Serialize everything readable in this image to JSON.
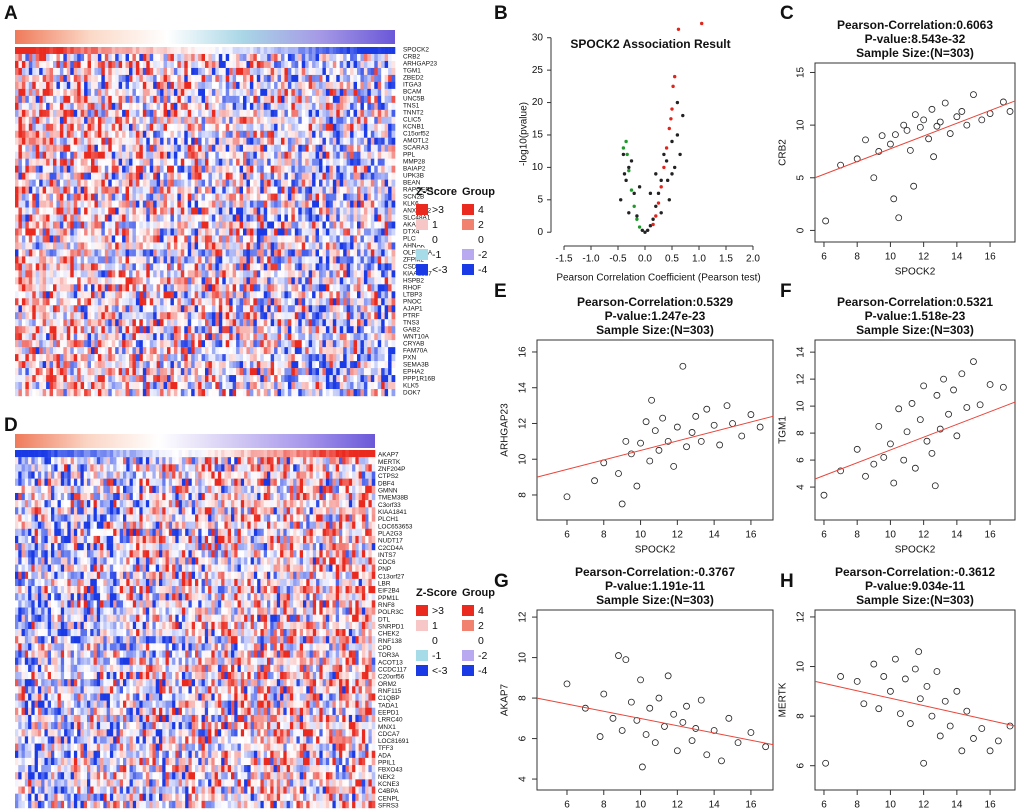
{
  "chart_data": [
    {
      "type": "heatmap",
      "panel": "A",
      "genes": [
        "SPOCK2",
        "CRB2",
        "ARHGAP23",
        "TGM1",
        "ZBED2",
        "ITGA3",
        "BCAM",
        "UNC5B",
        "TNS1",
        "TNNT2",
        "CLIC5",
        "KCNB1",
        "C15orf52",
        "AMOTL2",
        "SCARA3",
        "PPL",
        "MMP28",
        "BAIAP2",
        "UPK3B",
        "BEAN",
        "RAPGEF3",
        "SCN2B",
        "KLK6",
        "ANXA8L2",
        "SLC48A1",
        "AKAP12",
        "DTX4",
        "PLCD3",
        "AHNAK",
        "OLFML2A",
        "ZFPM2",
        "CSDC2",
        "KIAA1217",
        "HSPB2",
        "RHOF",
        "LTBP3",
        "PNOC",
        "AJAP1",
        "PTRF",
        "TNS3",
        "GAB2",
        "WNT10A",
        "CRYAB",
        "FAM70A",
        "PXN",
        "SEMA3B",
        "EPHA2",
        "PPP1R16B",
        "KLK5",
        "DOK7"
      ],
      "bar_colors": [
        "#ef7a5a",
        "#fbd9c8",
        "#ffffff",
        "#a9d6e6",
        "#a69ae6",
        "#6a58d8"
      ],
      "zscore": {
        "title": "Z-Score",
        "labels": [
          ">3",
          "1",
          "0",
          "-1",
          "<-3"
        ],
        "colors": [
          "#ea2a1f",
          "#f7c6c6",
          "#ffffff",
          "#a6dbe8",
          "#1a3ae6"
        ]
      },
      "group": {
        "title": "Group",
        "labels": [
          "4",
          "2",
          "0",
          "-2",
          "-4"
        ],
        "colors": [
          "#ea2a1f",
          "#f0826f",
          "#ffffff",
          "#b9a9f0",
          "#1a3ae6"
        ]
      }
    },
    {
      "type": "volcano",
      "panel": "B",
      "title": "SPOCK2 Association Result",
      "xlabel": "Pearson Correlation Coefficient (Pearson test)",
      "ylabel": "-log10(pvalue)",
      "xlim": [
        -1.63,
        2.13
      ],
      "ylim": [
        -1.2,
        31.5
      ],
      "xticks": [
        -1.5,
        {
          "value": -1,
          "label": "-1.0"
        },
        -0.5,
        {
          "value": 0,
          "label": "0.0"
        },
        0.5,
        {
          "value": 1,
          "label": "1.0"
        },
        1.5,
        {
          "value": 2,
          "label": "2.0"
        }
      ],
      "yticks": [
        0,
        5,
        10,
        15,
        20,
        25,
        30
      ],
      "points": [
        {
          "color": "#222222",
          "x": [
            0,
            0.05,
            -0.05,
            0.1,
            0.2,
            0.3,
            0.4,
            0.5,
            0.6,
            -0.2,
            -0.3,
            -0.4,
            -0.45,
            0.45,
            0.3,
            -0.3,
            0.55,
            -0.35,
            0.1,
            -0.1,
            0.2,
            0.35,
            0.5,
            -0.25,
            0.65,
            0.7,
            0.6,
            0.15,
            -0.15,
            0.25,
            -0.38,
            0.42
          ],
          "y": [
            0,
            0.3,
            0.3,
            1,
            4,
            8,
            11,
            14,
            15,
            6,
            10,
            12,
            5,
            5,
            3,
            3,
            10,
            8,
            6,
            7,
            9,
            12,
            9,
            11,
            12,
            18,
            20,
            2,
            2.5,
            6,
            9,
            8
          ]
        },
        {
          "color": "#1f9a2a",
          "x": [
            -0.4,
            -0.35,
            -0.33,
            -0.3,
            -0.25,
            -0.2,
            -0.15,
            -0.1
          ],
          "y": [
            13,
            14,
            12,
            9.5,
            6.5,
            4,
            2,
            0.8
          ]
        },
        {
          "color": "#e3241b",
          "x": [
            0.62,
            1.05,
            0.55,
            0.52,
            0.5,
            0.48,
            0.45,
            0.4,
            0.35,
            0.3,
            0.25,
            0.2,
            0.15
          ],
          "y": [
            31.3,
            32.2,
            24,
            22.5,
            19,
            17.5,
            16,
            13,
            10,
            7,
            4.5,
            2.5,
            1.2
          ]
        }
      ]
    },
    {
      "type": "scatter",
      "panel": "C",
      "title": [
        "Pearson-Correlation:0.6063",
        "P-value:8.543e-32",
        "Sample Size:(N=303)"
      ],
      "xlabel": "SPOCK2",
      "ylabel": "CRB2",
      "xlim": [
        5.46,
        17.5
      ],
      "ylim": [
        -1.1,
        15.9
      ],
      "xticks": [
        6,
        8,
        10,
        12,
        14,
        16
      ],
      "yticks": [
        0,
        5,
        10,
        15
      ],
      "x": [
        6.1,
        7,
        8,
        8.5,
        9,
        9.3,
        9.5,
        10,
        10.2,
        10.5,
        10.8,
        11,
        11.2,
        11.5,
        11.8,
        12,
        12.3,
        12.5,
        12.8,
        13,
        13.3,
        13.6,
        14,
        14.3,
        14.6,
        15,
        15.5,
        16,
        16.8,
        17.2,
        11.4,
        12.6,
        10.3
      ],
      "y": [
        0.9,
        6.2,
        6.8,
        8.6,
        5,
        7.5,
        9,
        8.2,
        3,
        1.2,
        10,
        9.5,
        7.6,
        11,
        9.8,
        10.5,
        8.7,
        11.5,
        9.9,
        10.3,
        12.1,
        9.2,
        10.8,
        11.3,
        10,
        12.9,
        10.5,
        11.1,
        12.2,
        11.3,
        4.2,
        7,
        9.1
      ],
      "fit": {
        "x": [
          5.46,
          17.5
        ],
        "y": [
          5.0,
          12.3
        ]
      }
    },
    {
      "type": "scatter",
      "panel": "E",
      "title": [
        "Pearson-Correlation:0.5329",
        "P-value:1.247e-23",
        "Sample Size:(N=303)"
      ],
      "xlabel": "SPOCK2",
      "ylabel": "ARHGAP23",
      "xlim": [
        4.37,
        17.2
      ],
      "ylim": [
        6.6,
        16.67
      ],
      "xticks": [
        6,
        8,
        10,
        12,
        14,
        16
      ],
      "yticks": [
        8,
        10,
        12,
        14,
        16
      ],
      "x": [
        6,
        7.5,
        8,
        8.8,
        9,
        9.2,
        9.5,
        9.8,
        10,
        10.3,
        10.5,
        10.8,
        11,
        11.2,
        11.5,
        11.8,
        12,
        12.3,
        12.5,
        12.8,
        13,
        13.3,
        13.6,
        14,
        14.3,
        14.7,
        15,
        15.5,
        16,
        16.5,
        10.6
      ],
      "y": [
        7.9,
        8.8,
        9.8,
        9.2,
        7.5,
        11,
        10.3,
        8.5,
        10.9,
        12.1,
        9.9,
        11.6,
        10.5,
        12.3,
        11,
        9.6,
        11.8,
        15.2,
        10.7,
        11.5,
        12.4,
        11,
        12.8,
        11.9,
        10.8,
        13,
        12,
        11.3,
        12.5,
        11.8,
        13.3
      ],
      "fit": {
        "x": [
          4.37,
          17.2
        ],
        "y": [
          9.0,
          12.4
        ]
      }
    },
    {
      "type": "scatter",
      "panel": "F",
      "title": [
        "Pearson-Correlation:0.5321",
        "P-value:1.518e-23",
        "Sample Size:(N=303)"
      ],
      "xlabel": "SPOCK2",
      "ylabel": "TGM1",
      "xlim": [
        5.46,
        17.5
      ],
      "ylim": [
        1.56,
        14.9
      ],
      "xticks": [
        6,
        8,
        10,
        12,
        14,
        16
      ],
      "yticks": [
        4,
        6,
        8,
        10,
        12,
        14
      ],
      "x": [
        6,
        7,
        8,
        8.5,
        9,
        9.3,
        9.6,
        10,
        10.2,
        10.5,
        10.8,
        11,
        11.3,
        11.5,
        11.8,
        12,
        12.2,
        12.5,
        12.8,
        13,
        13.2,
        13.5,
        13.8,
        14,
        14.3,
        14.6,
        15,
        15.4,
        16,
        16.8,
        12.7
      ],
      "y": [
        3.4,
        5.2,
        6.8,
        4.8,
        5.7,
        8.5,
        6.2,
        7.2,
        4.3,
        9.8,
        6,
        8.1,
        10.2,
        5.4,
        9,
        11.5,
        7.4,
        6.5,
        10.8,
        8.3,
        12,
        9.4,
        11.2,
        7.8,
        12.4,
        9.9,
        13.3,
        10.1,
        11.6,
        11.4,
        4.1
      ],
      "fit": {
        "x": [
          5.46,
          17.5
        ],
        "y": [
          4.6,
          10.3
        ]
      }
    },
    {
      "type": "heatmap",
      "panel": "D",
      "genes": [
        "AKAP7",
        "MERTK",
        "ZNF204P",
        "CTPS2",
        "DBF4",
        "GMNN",
        "TMEM38B",
        "C3orf33",
        "KIAA1841",
        "PLCH1",
        "LOC653653",
        "PLA2G3",
        "NUDT17",
        "C2CD4A",
        "INTS7",
        "CDC6",
        "PNP",
        "C13orf27",
        "LBR",
        "EIF2B4",
        "PPM1L",
        "RNF8",
        "POLR3C",
        "DTL",
        "SNRPD1",
        "CHEK2",
        "RNF138",
        "CPD",
        "TOR3A",
        "ACOT13",
        "CCDC117",
        "C20orf56",
        "ORM2",
        "RNF115",
        "C1QBP",
        "TADA1",
        "EEPD1",
        "LRRC40",
        "MNX1",
        "CDCA7",
        "LOC81691",
        "TFF3",
        "ADA",
        "PPIL1",
        "FBXO43",
        "NEK2",
        "KCNE3",
        "C4BPA",
        "CENPL",
        "SFRS3"
      ],
      "bar_colors": [
        "#ef7a5a",
        "#fbd4c4",
        "#ffffff",
        "#d6cdf4",
        "#a898ec",
        "#6a58d8"
      ],
      "zscore": {
        "title": "Z-Score",
        "labels": [
          ">3",
          "1",
          "0",
          "-1",
          "<-3"
        ],
        "colors": [
          "#ea2a1f",
          "#f7c6c6",
          "#ffffff",
          "#a6dbe8",
          "#1a3ae6"
        ]
      },
      "group": {
        "title": "Group",
        "labels": [
          "4",
          "2",
          "0",
          "-2",
          "-4"
        ],
        "colors": [
          "#ea2a1f",
          "#f0826f",
          "#ffffff",
          "#b9a9f0",
          "#1a3ae6"
        ]
      }
    },
    {
      "type": "scatter",
      "panel": "G",
      "title": [
        "Pearson-Correlation:-0.3767",
        "P-value:1.191e-11",
        "Sample Size:(N=303)"
      ],
      "xlabel": "SPOCK2",
      "ylabel": "AKAP7",
      "xlim": [
        4.37,
        17.2
      ],
      "ylim": [
        3.46,
        12.35
      ],
      "xticks": [
        6,
        8,
        10,
        12,
        14,
        16
      ],
      "yticks": [
        4,
        6,
        8,
        10,
        12
      ],
      "x": [
        6,
        7,
        7.8,
        8,
        8.5,
        8.8,
        9,
        9.2,
        9.5,
        9.8,
        10,
        10.3,
        10.5,
        10.8,
        11,
        11.3,
        11.5,
        11.8,
        12,
        12.3,
        12.5,
        12.8,
        13,
        13.3,
        13.6,
        14,
        14.4,
        14.8,
        15.3,
        16,
        16.8,
        10.1
      ],
      "y": [
        8.7,
        7.5,
        6.1,
        8.2,
        7,
        10.1,
        6.4,
        9.9,
        7.8,
        6.9,
        8.9,
        6.2,
        7.5,
        5.8,
        8,
        6.6,
        9.1,
        7.2,
        5.4,
        6.8,
        7.6,
        5.9,
        6.5,
        7.9,
        5.2,
        6.4,
        4.9,
        7,
        5.8,
        6.3,
        5.6,
        4.6
      ],
      "fit": {
        "x": [
          4.37,
          17.2
        ],
        "y": [
          8.0,
          5.7
        ]
      }
    },
    {
      "type": "scatter",
      "panel": "H",
      "title": [
        "Pearson-Correlation:-0.3612",
        "P-value:9.034e-11",
        "Sample Size:(N=303)"
      ],
      "xlabel": "SPOCK2",
      "ylabel": "MERTK",
      "xlim": [
        5.46,
        17.5
      ],
      "ylim": [
        5.02,
        12.28
      ],
      "xticks": [
        6,
        8,
        10,
        12,
        14,
        16
      ],
      "yticks": [
        6,
        8,
        10,
        12
      ],
      "x": [
        6.1,
        7,
        8,
        8.4,
        9,
        9.3,
        9.6,
        10,
        10.3,
        10.6,
        10.9,
        11.2,
        11.5,
        11.8,
        12,
        12.2,
        12.5,
        12.8,
        13,
        13.3,
        13.6,
        14,
        14.3,
        14.6,
        15,
        15.5,
        16,
        16.5,
        17.2,
        11.7
      ],
      "y": [
        6.1,
        9.6,
        9.4,
        8.5,
        10.1,
        8.3,
        9.6,
        9,
        10.3,
        8.1,
        9.5,
        7.7,
        9.9,
        8.7,
        6.1,
        9.2,
        8,
        9.8,
        7.2,
        8.6,
        7.6,
        9,
        6.6,
        8.2,
        7.1,
        7.5,
        6.6,
        7,
        7.6,
        10.6
      ],
      "fit": {
        "x": [
          5.46,
          17.5
        ],
        "y": [
          9.4,
          7.6
        ]
      }
    }
  ]
}
